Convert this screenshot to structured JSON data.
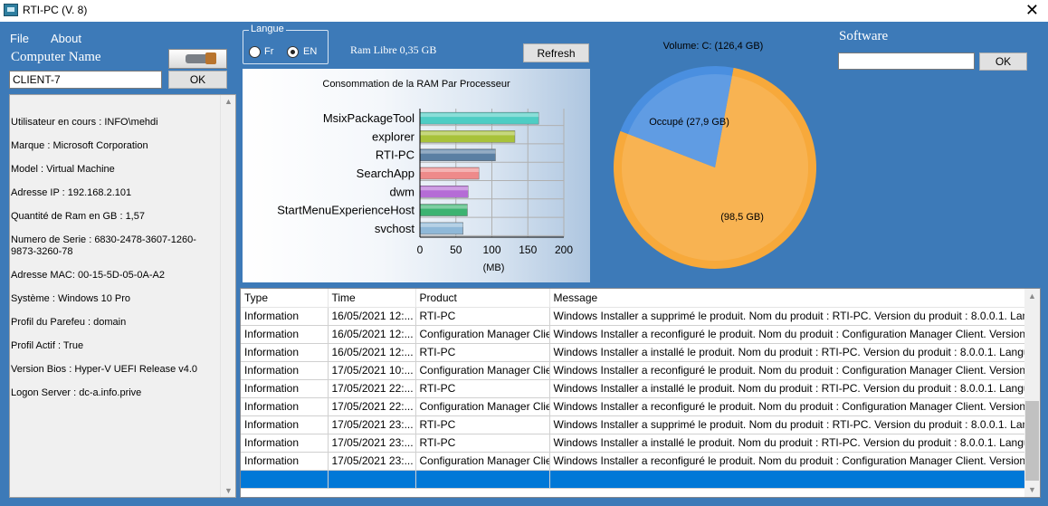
{
  "window": {
    "title": "RTI-PC  (V. 8)"
  },
  "menu": {
    "file": "File",
    "about": "About"
  },
  "computer_name": {
    "label": "Computer Name",
    "value": "CLIENT-7",
    "ok": "OK"
  },
  "info": [
    "Utilisateur en cours : INFO\\mehdi",
    "Marque : Microsoft Corporation",
    "Model : Virtual Machine",
    "Adresse IP : 192.168.2.101",
    "Quantité de Ram en GB : 1,57",
    "Numero de Serie : 6830-2478-3607-1260-9873-3260-78",
    "Adresse MAC: 00-15-5D-05-0A-A2",
    "Système : Windows 10 Pro",
    "Profil du Parefeu : domain",
    "Profil  Actif : True",
    "Version Bios : Hyper-V UEFI Release v4.0",
    "Logon Server : dc-a.info.prive"
  ],
  "langue": {
    "title": "Langue",
    "fr": "Fr",
    "en": "EN",
    "selected": "EN"
  },
  "ram_libre": "Ram Libre 0,35 GB",
  "refresh": "Refresh",
  "software": {
    "label": "Software",
    "value": "",
    "ok": "OK"
  },
  "chart_data": [
    {
      "type": "bar",
      "orientation": "horizontal",
      "title": "Consommation de la RAM Par Processeur",
      "xlabel": "(MB)",
      "categories": [
        "MsixPackageTool",
        "explorer",
        "RTI-PC",
        "SearchApp",
        "dwm",
        "StartMenuExperienceHost",
        "svchost"
      ],
      "values": [
        165,
        132,
        105,
        82,
        67,
        66,
        60
      ],
      "colors": [
        "#4ecdc4",
        "#a8c23a",
        "#5a7fa3",
        "#ee8a8a",
        "#b56cd6",
        "#3cb371",
        "#8fb8d8"
      ],
      "xticks": [
        "0",
        "50",
        "100",
        "150",
        "200"
      ],
      "xlim": [
        0,
        200
      ],
      "grid": true
    },
    {
      "type": "pie",
      "title": "Volume: C: (126,4 GB)",
      "labels": [
        "(98,5 GB)",
        "Occupé (27,9 GB)"
      ],
      "values": [
        98.5,
        27.9
      ],
      "colors": [
        "#f7a93b",
        "#4a8fe0"
      ]
    }
  ],
  "table": {
    "columns": [
      "Type",
      "Time",
      "Product",
      "Message"
    ],
    "rows": [
      [
        "Information",
        "16/05/2021 12:...",
        "RTI-PC",
        "Windows Installer a supprimé le produit. Nom du produit : RTI-PC. Version du produit : 8.0.0.1. Langue du pr..."
      ],
      [
        "Information",
        "16/05/2021 12:...",
        "Configuration Manager Client",
        "Windows Installer a reconfiguré le produit. Nom du produit : Configuration Manager Client. Version du produi..."
      ],
      [
        "Information",
        "16/05/2021 12:...",
        "RTI-PC",
        "Windows Installer a installé le produit. Nom du produit : RTI-PC. Version du produit : 8.0.0.1. Langue du pro..."
      ],
      [
        "Information",
        "17/05/2021 10:...",
        "Configuration Manager Client",
        "Windows Installer a reconfiguré le produit. Nom du produit : Configuration Manager Client. Version du produi..."
      ],
      [
        "Information",
        "17/05/2021 22:...",
        "RTI-PC",
        "Windows Installer a installé le produit. Nom du produit : RTI-PC. Version du produit : 8.0.0.1. Langue du pro..."
      ],
      [
        "Information",
        "17/05/2021 22:...",
        "Configuration Manager Client",
        "Windows Installer a reconfiguré le produit. Nom du produit : Configuration Manager Client. Version du produi..."
      ],
      [
        "Information",
        "17/05/2021 23:...",
        "RTI-PC",
        "Windows Installer a supprimé le produit. Nom du produit : RTI-PC. Version du produit : 8.0.0.1. Langue du pr..."
      ],
      [
        "Information",
        "17/05/2021 23:...",
        "RTI-PC",
        "Windows Installer a installé le produit. Nom du produit : RTI-PC. Version du produit : 8.0.0.1. Langue du pro..."
      ],
      [
        "Information",
        "17/05/2021 23:...",
        "Configuration Manager Client",
        "Windows Installer a reconfiguré le produit. Nom du produit : Configuration Manager Client. Version du produi..."
      ],
      [
        "",
        "",
        "",
        ""
      ]
    ],
    "selected_row": 9
  }
}
